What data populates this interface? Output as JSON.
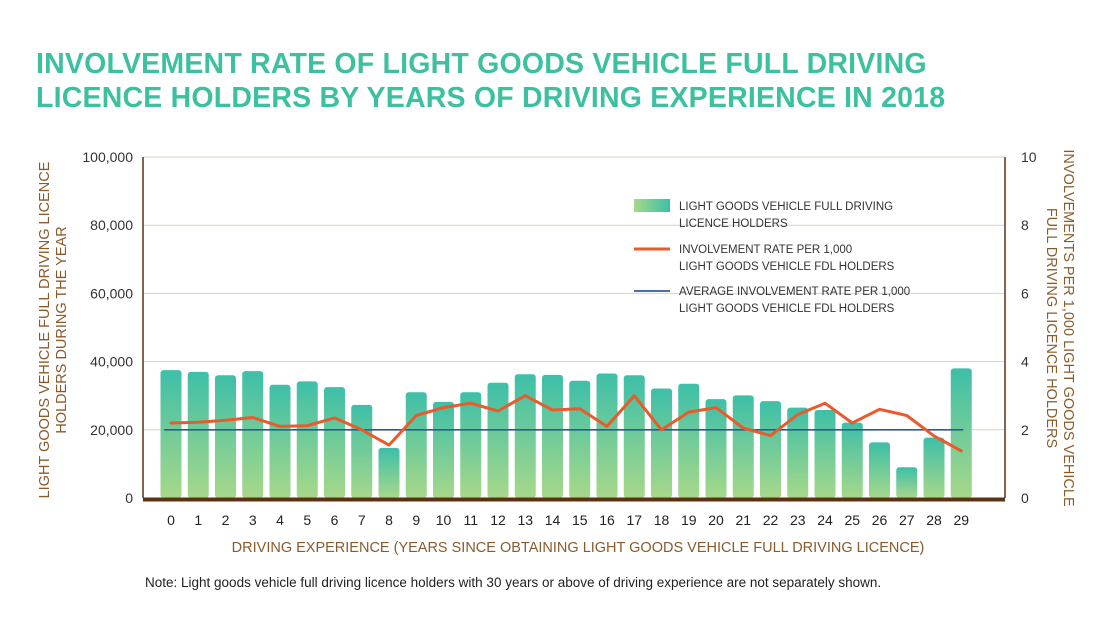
{
  "title_line1": "INVOLVEMENT RATE OF LIGHT GOODS VEHICLE FULL DRIVING",
  "title_line2": "LICENCE HOLDERS BY YEARS OF DRIVING EXPERIENCE IN 2018",
  "note": "Note: Light goods vehicle full driving licence holders with 30 years or above of driving experience are not separately shown.",
  "colors": {
    "title": "#3cc0a0",
    "bar_top": "#3dbfa8",
    "bar_bottom": "#a7d88a",
    "rate_line": "#ea5a2b",
    "average_line": "#2c5b9c",
    "axis": "#5a3412",
    "axis_title": "#8a5a2b"
  },
  "chart_data": {
    "type": "bar",
    "xlabel": "DRIVING EXPERIENCE (YEARS SINCE OBTAINING LIGHT GOODS VEHICLE FULL DRIVING LICENCE)",
    "ylabel_left_line1": "LIGHT GOODS VEHICLE FULL DRIVING LICENCE",
    "ylabel_left_line2": "HOLDERS DURING THE YEAR",
    "ylabel_right_line1": "INVOLVEMENTS PER 1,000 LIGHT GOODS VEHICLE",
    "ylabel_right_line2": "FULL DRIVING LICENCE  HOLDERS",
    "ylim_left": [
      0,
      100000
    ],
    "ylim_right": [
      0,
      10
    ],
    "yticks_left": [
      "0",
      "20,000",
      "40,000",
      "60,000",
      "80,000",
      "100,000"
    ],
    "yticks_right": [
      "0",
      "2",
      "4",
      "6",
      "8",
      "10"
    ],
    "grid": true,
    "legend_position": "upper-right",
    "categories": [
      "0",
      "1",
      "2",
      "3",
      "4",
      "5",
      "6",
      "7",
      "8",
      "9",
      "10",
      "11",
      "12",
      "13",
      "14",
      "15",
      "16",
      "17",
      "18",
      "19",
      "20",
      "21",
      "22",
      "23",
      "24",
      "25",
      "26",
      "27",
      "28",
      "29"
    ],
    "series": [
      {
        "name": "LIGHT GOODS VEHICLE FULL DRIVING LICENCE HOLDERS",
        "name_line1": "LIGHT GOODS VEHICLE FULL DRIVING",
        "name_line2": "LICENCE HOLDERS",
        "type": "bar",
        "axis": "left",
        "values": [
          37500,
          37000,
          36000,
          37200,
          33200,
          34200,
          32500,
          27300,
          14700,
          31000,
          28200,
          31000,
          33800,
          36300,
          36100,
          34400,
          36500,
          36000,
          32100,
          33500,
          29000,
          30100,
          28400,
          26500,
          25800,
          22100,
          16300,
          9000,
          17700,
          38000
        ]
      },
      {
        "name": "INVOLVEMENT RATE PER 1,000 LIGHT GOODS VEHICLE FDL HOLDERS",
        "name_line1": "INVOLVEMENT RATE PER 1,000",
        "name_line2": "LIGHT GOODS VEHICLE FDL HOLDERS",
        "type": "line",
        "axis": "right",
        "values": [
          2.2,
          2.22,
          2.28,
          2.36,
          2.1,
          2.12,
          2.35,
          2.0,
          1.55,
          2.42,
          2.65,
          2.78,
          2.55,
          3.0,
          2.58,
          2.62,
          2.1,
          3.0,
          2.0,
          2.52,
          2.65,
          2.05,
          1.83,
          2.45,
          2.78,
          2.2,
          2.6,
          2.42,
          1.82,
          1.38
        ]
      },
      {
        "name": "AVERAGE INVOLVEMENT RATE PER 1,000 LIGHT GOODS VEHICLE FDL HOLDERS",
        "name_line1": "AVERAGE INVOLVEMENT RATE PER 1,000",
        "name_line2": "LIGHT GOODS VEHICLE FDL HOLDERS",
        "type": "line",
        "axis": "right",
        "value": 2.0
      }
    ]
  }
}
